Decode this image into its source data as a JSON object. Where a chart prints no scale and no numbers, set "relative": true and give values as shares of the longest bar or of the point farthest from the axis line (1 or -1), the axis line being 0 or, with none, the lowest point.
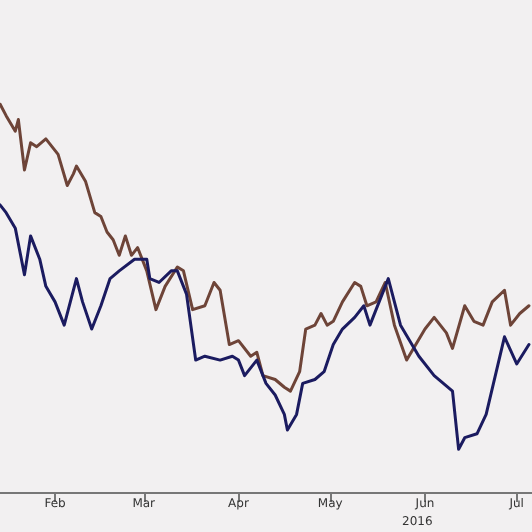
{
  "chart_data": {
    "type": "line",
    "relative": true,
    "xlabel": "2016",
    "xlim": [
      "2016-01-28",
      "2016-07-20"
    ],
    "xticks": [
      {
        "value": "2016-02-15",
        "label": "Feb"
      },
      {
        "value": "2016-03-15",
        "label": "Mar"
      },
      {
        "value": "2016-04-15",
        "label": "Apr"
      },
      {
        "value": "2016-05-15",
        "label": "May"
      },
      {
        "value": "2016-06-15",
        "label": "Jun"
      },
      {
        "value": "2016-07-15",
        "label": "Jul"
      }
    ],
    "grid": false,
    "marker": "none",
    "line_style": "solid",
    "series": [
      {
        "color": "#6e4438",
        "x": [
          "2016-01-28",
          "2016-01-30",
          "2016-02-02",
          "2016-02-03",
          "2016-02-05",
          "2016-02-07",
          "2016-02-09",
          "2016-02-12",
          "2016-02-14",
          "2016-02-16",
          "2016-02-19",
          "2016-02-21",
          "2016-02-22",
          "2016-02-25",
          "2016-02-28",
          "2016-03-01",
          "2016-03-03",
          "2016-03-05",
          "2016-03-07",
          "2016-03-09",
          "2016-03-11",
          "2016-03-13",
          "2016-03-16",
          "2016-03-19",
          "2016-03-22",
          "2016-03-26",
          "2016-03-28",
          "2016-03-31",
          "2016-04-04",
          "2016-04-07",
          "2016-04-09",
          "2016-04-12",
          "2016-04-15",
          "2016-04-19",
          "2016-04-21",
          "2016-04-23",
          "2016-04-27",
          "2016-04-30",
          "2016-05-02",
          "2016-05-05",
          "2016-05-07",
          "2016-05-10",
          "2016-05-12",
          "2016-05-14",
          "2016-05-16",
          "2016-05-19",
          "2016-05-23",
          "2016-05-25",
          "2016-05-27",
          "2016-05-30",
          "2016-06-02",
          "2016-06-05",
          "2016-06-09",
          "2016-06-12",
          "2016-06-15",
          "2016-06-18",
          "2016-06-22",
          "2016-06-24",
          "2016-06-28",
          "2016-07-01",
          "2016-07-04",
          "2016-07-07",
          "2016-07-11",
          "2016-07-13",
          "2016-07-16",
          "2016-07-19"
        ],
        "values": [
          1.0,
          0.97,
          0.93,
          0.96,
          0.83,
          0.9,
          0.89,
          0.91,
          0.89,
          0.87,
          0.79,
          0.82,
          0.84,
          0.8,
          0.72,
          0.71,
          0.67,
          0.65,
          0.61,
          0.66,
          0.61,
          0.63,
          0.57,
          0.47,
          0.53,
          0.58,
          0.57,
          0.47,
          0.48,
          0.54,
          0.52,
          0.38,
          0.39,
          0.35,
          0.36,
          0.3,
          0.29,
          0.27,
          0.26,
          0.31,
          0.42,
          0.43,
          0.46,
          0.43,
          0.44,
          0.49,
          0.54,
          0.53,
          0.48,
          0.49,
          0.54,
          0.43,
          0.34,
          0.38,
          0.42,
          0.45,
          0.41,
          0.37,
          0.48,
          0.44,
          0.43,
          0.49,
          0.52,
          0.43,
          0.46,
          0.48
        ]
      },
      {
        "color": "#1b1b60",
        "x": [
          "2016-01-28",
          "2016-01-30",
          "2016-02-02",
          "2016-02-05",
          "2016-02-07",
          "2016-02-10",
          "2016-02-12",
          "2016-02-15",
          "2016-02-18",
          "2016-02-22",
          "2016-02-24",
          "2016-02-27",
          "2016-03-01",
          "2016-03-04",
          "2016-03-07",
          "2016-03-12",
          "2016-03-16",
          "2016-03-17",
          "2016-03-20",
          "2016-03-24",
          "2016-03-26",
          "2016-03-29",
          "2016-04-01",
          "2016-04-04",
          "2016-04-09",
          "2016-04-13",
          "2016-04-15",
          "2016-04-17",
          "2016-04-21",
          "2016-04-24",
          "2016-04-27",
          "2016-04-30",
          "2016-05-01",
          "2016-05-04",
          "2016-05-06",
          "2016-05-10",
          "2016-05-13",
          "2016-05-16",
          "2016-05-19",
          "2016-05-23",
          "2016-05-26",
          "2016-05-28",
          "2016-05-31",
          "2016-06-03",
          "2016-06-07",
          "2016-06-10",
          "2016-06-13",
          "2016-06-18",
          "2016-06-21",
          "2016-06-24",
          "2016-06-26",
          "2016-06-28",
          "2016-07-02",
          "2016-07-05",
          "2016-07-08",
          "2016-07-11",
          "2016-07-15",
          "2016-07-19"
        ],
        "values": [
          0.74,
          0.72,
          0.68,
          0.56,
          0.66,
          0.6,
          0.53,
          0.49,
          0.43,
          0.55,
          0.49,
          0.42,
          0.48,
          0.55,
          0.57,
          0.6,
          0.6,
          0.55,
          0.54,
          0.57,
          0.57,
          0.51,
          0.34,
          0.35,
          0.34,
          0.35,
          0.34,
          0.3,
          0.34,
          0.28,
          0.25,
          0.2,
          0.16,
          0.2,
          0.28,
          0.29,
          0.31,
          0.38,
          0.42,
          0.45,
          0.48,
          0.43,
          0.49,
          0.55,
          0.43,
          0.39,
          0.35,
          0.3,
          0.28,
          0.26,
          0.11,
          0.14,
          0.15,
          0.2,
          0.3,
          0.4,
          0.33,
          0.38
        ]
      }
    ]
  }
}
